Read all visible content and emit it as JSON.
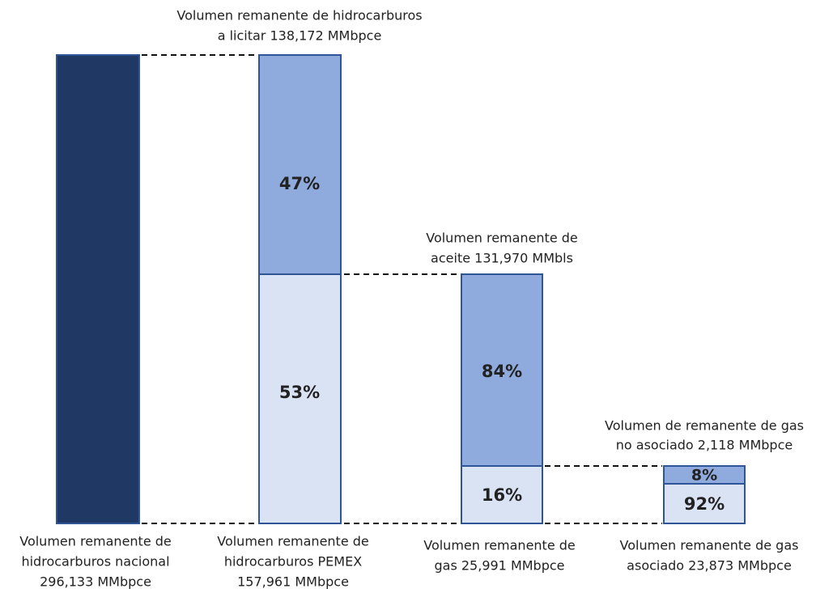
{
  "bars": [
    {
      "label": [
        "Volumen remanente de",
        "hidrocarburos nacional",
        "296,133 MMbpce"
      ]
    },
    {
      "label": [
        "Volumen remanente de",
        "hidrocarburos PEMEX",
        "157,961 MMbpce"
      ],
      "segments": [
        "47%",
        "53%"
      ],
      "annotation": [
        "Volumen  remanente de hidrocarburos",
        "a licitar 138,172 MMbpce"
      ]
    },
    {
      "label": [
        "Volumen remanente de",
        "gas 25,991 MMbpce"
      ],
      "segments": [
        "84%",
        "16%"
      ],
      "annotation": [
        "Volumen remanente de",
        "aceite 131,970 MMbls"
      ]
    },
    {
      "label": [
        "Volumen remanente de gas",
        "asociado 23,873 MMbpce"
      ],
      "segments": [
        "8%",
        "92%"
      ],
      "annotation": [
        "Volumen de remanente de gas",
        "no asociado 2,118 MMbpce"
      ]
    }
  ]
}
